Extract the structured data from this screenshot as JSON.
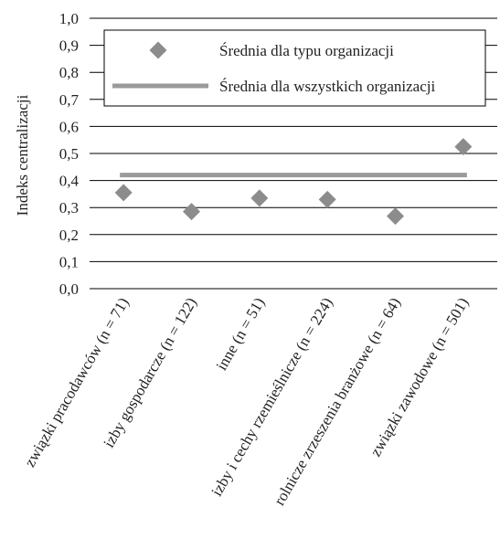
{
  "chart_data": {
    "type": "scatter",
    "title": "",
    "xlabel": "",
    "ylabel": "Indeks centralizacji",
    "ylim": [
      0.0,
      1.0
    ],
    "yticks": [
      "0,0",
      "0,1",
      "0,2",
      "0,3",
      "0,4",
      "0,5",
      "0,6",
      "0,7",
      "0,8",
      "0,9",
      "1,0"
    ],
    "grid": true,
    "legend_position": "top-right",
    "categories": [
      "związki pracodawców (n = 71)",
      "izby gospodarcze (n = 122)",
      "inne (n = 51)",
      "izby i cechy rzemieślnicze (n = 224)",
      "rolnicze zrzeszenia branżowe (n = 64)",
      "związki zawodowe (n = 501)"
    ],
    "series": [
      {
        "name": "Średnia dla typu organizacji",
        "marker": "diamond",
        "color": "#8c8c8c",
        "values": [
          0.355,
          0.285,
          0.335,
          0.33,
          0.268,
          0.525
        ]
      },
      {
        "name": "Średnia dla wszystkich organizacji",
        "marker": "line",
        "color": "#9a9a9a",
        "value": 0.42
      }
    ]
  }
}
